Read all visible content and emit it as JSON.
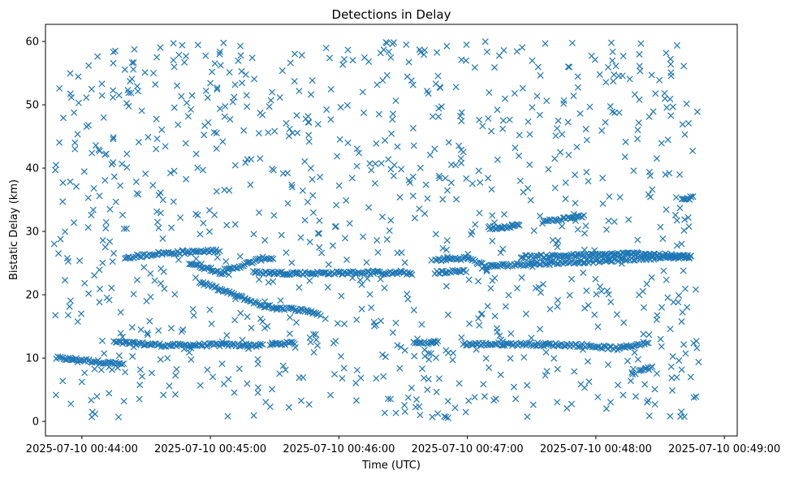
{
  "chart_data": {
    "type": "scatter",
    "title": "Detections in Delay",
    "xlabel": "Time (UTC)",
    "ylabel": "Bistatic Delay (km)",
    "marker": "x",
    "color": "#1f77b4",
    "grid": false,
    "x_domain_seconds_from_first_tick": [
      -17,
      306
    ],
    "ylim": [
      -2.3,
      62.7
    ],
    "x_ticks": [
      {
        "label": "2025-07-10 00:44:00"
      },
      {
        "label": "2025-07-10 00:45:00"
      },
      {
        "label": "2025-07-10 00:46:00"
      },
      {
        "label": "2025-07-10 00:47:00"
      },
      {
        "label": "2025-07-10 00:48:00"
      },
      {
        "label": "2025-07-10 00:49:00"
      }
    ],
    "y_ticks": [
      0,
      10,
      20,
      30,
      40,
      50,
      60
    ],
    "x_range": [
      "2025-07-10 00:43:45",
      "2025-07-10 00:48:48"
    ],
    "series": [
      {
        "values_description": "each point [time, delay_km]",
        "tracks": [
          {
            "points": [
              [
                "2025-07-10 00:43:48",
                10.0
              ],
              [
                "2025-07-10 00:44:00",
                9.7
              ],
              [
                "2025-07-10 00:44:20",
                9.0
              ]
            ]
          },
          {
            "points": [
              [
                "2025-07-10 00:44:15",
                12.5
              ],
              [
                "2025-07-10 00:44:40",
                12.0
              ],
              [
                "2025-07-10 00:45:05",
                12.1
              ],
              [
                "2025-07-10 00:45:25",
                12.0
              ]
            ]
          },
          {
            "points": [
              [
                "2025-07-10 00:45:28",
                12.2
              ],
              [
                "2025-07-10 00:45:40",
                12.4
              ]
            ]
          },
          {
            "points": [
              [
                "2025-07-10 00:44:20",
                25.8
              ],
              [
                "2025-07-10 00:44:35",
                26.5
              ],
              [
                "2025-07-10 00:44:55",
                26.8
              ],
              [
                "2025-07-10 00:45:05",
                27.0
              ]
            ]
          },
          {
            "points": [
              [
                "2025-07-10 00:44:50",
                25.0
              ],
              [
                "2025-07-10 00:45:05",
                23.5
              ],
              [
                "2025-07-10 00:45:25",
                25.8
              ],
              [
                "2025-07-10 00:45:30",
                25.7
              ]
            ]
          },
          {
            "points": [
              [
                "2025-07-10 00:44:55",
                22.0
              ],
              [
                "2025-07-10 00:45:15",
                19.5
              ],
              [
                "2025-07-10 00:45:25",
                18.2
              ],
              [
                "2025-07-10 00:45:45",
                17.5
              ],
              [
                "2025-07-10 00:45:52",
                16.8
              ]
            ]
          },
          {
            "points": [
              [
                "2025-07-10 00:45:20",
                23.5
              ],
              [
                "2025-07-10 00:45:45",
                23.4
              ],
              [
                "2025-07-10 00:46:10",
                23.5
              ],
              [
                "2025-07-10 00:46:35",
                23.4
              ]
            ]
          },
          {
            "points": [
              [
                "2025-07-10 00:46:35",
                12.3
              ],
              [
                "2025-07-10 00:46:47",
                12.5
              ]
            ]
          },
          {
            "points": [
              [
                "2025-07-10 00:46:45",
                25.5
              ],
              [
                "2025-07-10 00:47:00",
                25.8
              ],
              [
                "2025-07-10 00:47:10",
                24.3
              ]
            ]
          },
          {
            "points": [
              [
                "2025-07-10 00:46:45",
                23.5
              ],
              [
                "2025-07-10 00:47:00",
                23.8
              ]
            ]
          },
          {
            "points": [
              [
                "2025-07-10 00:46:58",
                12.2
              ],
              [
                "2025-07-10 00:47:30",
                12.2
              ],
              [
                "2025-07-10 00:47:55",
                12.0
              ],
              [
                "2025-07-10 00:48:10",
                11.5
              ],
              [
                "2025-07-10 00:48:25",
                12.5
              ]
            ]
          },
          {
            "points": [
              [
                "2025-07-10 00:47:10",
                30.5
              ],
              [
                "2025-07-10 00:47:25",
                31.0
              ]
            ]
          },
          {
            "points": [
              [
                "2025-07-10 00:47:35",
                31.5
              ],
              [
                "2025-07-10 00:47:55",
                32.5
              ]
            ]
          },
          {
            "points": [
              [
                "2025-07-10 00:47:10",
                24.5
              ],
              [
                "2025-07-10 00:47:35",
                25.0
              ],
              [
                "2025-07-10 00:48:00",
                25.3
              ],
              [
                "2025-07-10 00:48:25",
                25.8
              ],
              [
                "2025-07-10 00:48:45",
                26.0
              ]
            ]
          },
          {
            "points": [
              [
                "2025-07-10 00:47:25",
                26.0
              ],
              [
                "2025-07-10 00:47:50",
                26.2
              ],
              [
                "2025-07-10 00:48:20",
                26.5
              ],
              [
                "2025-07-10 00:48:45",
                26.0
              ]
            ]
          },
          {
            "points": [
              [
                "2025-07-10 00:48:20",
                8.0
              ],
              [
                "2025-07-10 00:48:27",
                8.5
              ]
            ]
          },
          {
            "points": [
              [
                "2025-07-10 00:48:40",
                35.0
              ],
              [
                "2025-07-10 00:48:46",
                35.5
              ]
            ]
          }
        ],
        "background_clutter": {
          "count": 1000,
          "delay_range": [
            0.5,
            60
          ],
          "time_range": [
            "2025-07-10 00:43:47",
            "2025-07-10 00:48:48"
          ]
        }
      }
    ]
  }
}
